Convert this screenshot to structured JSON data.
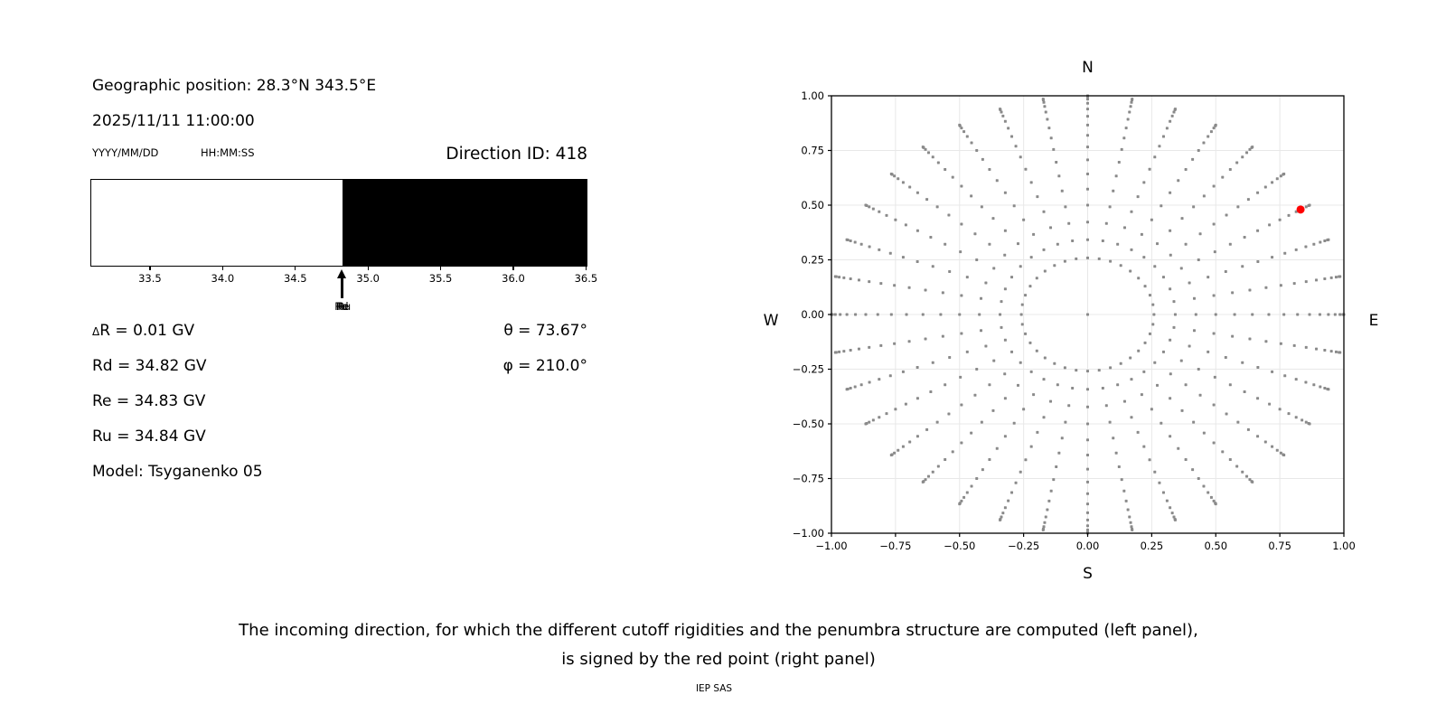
{
  "header": {
    "geo_position": "Geographic position: 28.3°N 343.5°E",
    "datetime": "2025/11/11 11:00:00",
    "date_format": "YYYY/MM/DD",
    "time_format": "HH:MM:SS",
    "direction_id": "Direction ID: 418"
  },
  "results": {
    "delta_symbol": "Δ",
    "delta_line_rest": "R = 0.01 GV",
    "rd": "Rd = 34.82 GV",
    "re": "Re = 34.83 GV",
    "ru": "Ru = 34.84 GV",
    "model": "Model: Tsyganenko 05",
    "theta": "θ = 73.67°",
    "phi": "φ = 210.0°"
  },
  "caption": {
    "line1": "The incoming direction, for which the different cutoff rigidities and the penumbra structure are computed (left panel),",
    "line2": "is signed by the red point (right panel)"
  },
  "footer": {
    "credit": "IEP SAS"
  },
  "chart_data": [
    {
      "type": "area",
      "name": "penumbra-structure",
      "xlim": [
        33.09,
        36.51
      ],
      "xticks": [
        33.5,
        34.0,
        34.5,
        35.0,
        35.5,
        36.0,
        36.5
      ],
      "xtick_labels": [
        "33.5",
        "34.0",
        "34.5",
        "35.0",
        "35.5",
        "36.0",
        "36.5"
      ],
      "boundary_gv": 34.82,
      "segments": [
        {
          "from": 33.09,
          "to": 34.82,
          "state": "allowed",
          "color": "#ffffff"
        },
        {
          "from": 34.82,
          "to": 36.51,
          "state": "forbidden",
          "color": "#000000"
        }
      ],
      "marker": {
        "x": 34.82,
        "labels": [
          "Rd",
          "Re",
          "Ru"
        ],
        "color": "#000000"
      }
    },
    {
      "type": "scatter",
      "name": "incoming-direction-grid",
      "xlim": [
        -1,
        1
      ],
      "ylim": [
        -1,
        1
      ],
      "xticks": [
        -1.0,
        -0.75,
        -0.5,
        -0.25,
        0.0,
        0.25,
        0.5,
        0.75,
        1.0
      ],
      "xtick_labels": [
        "−1.00",
        "−0.75",
        "−0.50",
        "−0.25",
        "0.00",
        "0.25",
        "0.50",
        "0.75",
        "1.00"
      ],
      "yticks": [
        1.0,
        0.75,
        0.5,
        0.25,
        0.0,
        -0.25,
        -0.5,
        -0.75,
        -1.0
      ],
      "ytick_labels": [
        "1.00",
        "0.75",
        "0.50",
        "0.25",
        "0.00",
        "−0.25",
        "−0.50",
        "−0.75",
        "−1.00"
      ],
      "grid": true,
      "grid_color": "#e8e8e8",
      "dot_color": "#8a8a8a",
      "compass_labels": {
        "top": "N",
        "bottom": "S",
        "left": "W",
        "right": "E"
      },
      "direction_grid": {
        "azimuth_start_deg": 0,
        "azimuth_step_deg": 10,
        "azimuth_count": 36,
        "zenith_start_deg": 15,
        "zenith_step_deg": 5,
        "zenith_end_deg": 90,
        "includes_center_point": true,
        "radius_formula": "r = sin(zenith); x = r*sin(azimuth); y = r*cos(azimuth)"
      },
      "selected_point": {
        "x": 0.831,
        "y": 0.48,
        "color": "#ff0000"
      }
    }
  ]
}
